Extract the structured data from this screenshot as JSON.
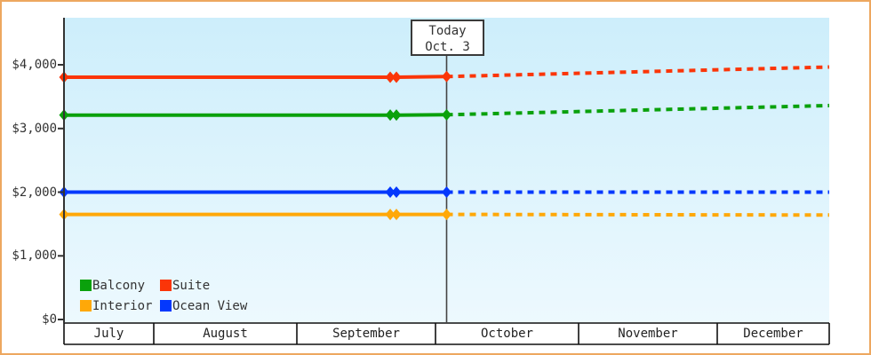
{
  "page": {
    "border_color": "#eda75f",
    "plot_bg_top": "#cdeefb",
    "plot_bg_bottom": "#edf9fe",
    "axis_color": "#333333",
    "band_line_color": "#111111",
    "today_line_color": "#444444"
  },
  "chart_data": {
    "type": "line",
    "title": "",
    "xlabel": "",
    "ylabel": "",
    "months": [
      "July",
      "August",
      "September",
      "October",
      "November",
      "December"
    ],
    "month_boundaries_t": [
      0,
      0.1173,
      0.3043,
      0.4855,
      0.6725,
      0.8537,
      1.0
    ],
    "y_ticks": [
      {
        "label": "$0",
        "value": 0
      },
      {
        "label": "$1,000",
        "value": 1000
      },
      {
        "label": "$2,000",
        "value": 2000
      },
      {
        "label": "$3,000",
        "value": 3000
      },
      {
        "label": "$4,000",
        "value": 4000
      }
    ],
    "ylim": [
      0,
      4740
    ],
    "today": {
      "line1": "Today",
      "line2": "Oct. 3",
      "t": 0.5
    },
    "series": [
      {
        "name": "Balcony",
        "color": "#0aa10c",
        "solid": [
          [
            0,
            3210
          ],
          [
            0.4263,
            3210
          ],
          [
            0.4344,
            3210
          ],
          [
            0.5,
            3215
          ]
        ],
        "dashed": [
          [
            0.5,
            3215
          ],
          [
            1,
            3360
          ]
        ],
        "markers_t": [
          0,
          0.4263,
          0.4344,
          0.5
        ]
      },
      {
        "name": "Suite",
        "color": "#fb3508",
        "solid": [
          [
            0,
            3805
          ],
          [
            0.4263,
            3805
          ],
          [
            0.4344,
            3805
          ],
          [
            0.5,
            3815
          ]
        ],
        "dashed": [
          [
            0.5,
            3815
          ],
          [
            1,
            3965
          ]
        ],
        "markers_t": [
          0,
          0.4263,
          0.4344,
          0.5
        ]
      },
      {
        "name": "Interior",
        "color": "#ffa808",
        "solid": [
          [
            0,
            1650
          ],
          [
            0.4263,
            1650
          ],
          [
            0.4344,
            1650
          ],
          [
            0.5,
            1650
          ]
        ],
        "dashed": [
          [
            0.5,
            1650
          ],
          [
            1,
            1640
          ]
        ],
        "markers_t": [
          0,
          0.4263,
          0.4344,
          0.5
        ]
      },
      {
        "name": "Ocean View",
        "color": "#0438fd",
        "solid": [
          [
            0,
            2000
          ],
          [
            0.4263,
            2000
          ],
          [
            0.4344,
            2000
          ],
          [
            0.5,
            2000
          ]
        ],
        "dashed": [
          [
            0.5,
            2000
          ],
          [
            1,
            2000
          ]
        ],
        "markers_t": [
          0,
          0.4263,
          0.4344,
          0.5
        ]
      }
    ],
    "legend_order": [
      0,
      1,
      2,
      3
    ]
  }
}
